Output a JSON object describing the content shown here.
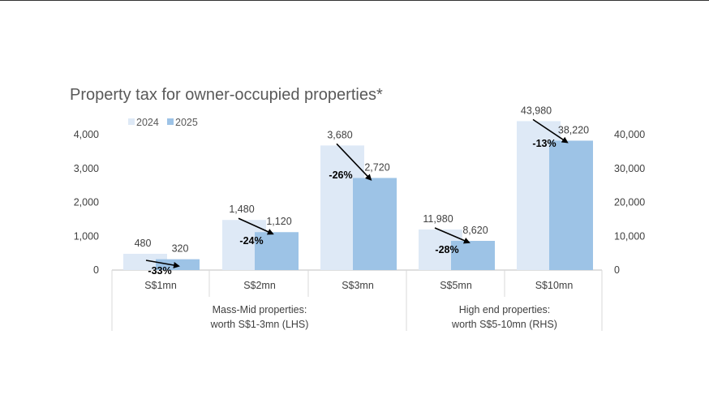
{
  "chart_data": {
    "type": "bar",
    "title": "Property tax for owner-occupied properties*",
    "categories": [
      "S$1mn",
      "S$2mn",
      "S$3mn",
      "S$5mn",
      "S$10mn"
    ],
    "groups": [
      {
        "label_lines": [
          "Mass-Mid properties:",
          "worth S$1-3mn (LHS)"
        ],
        "categories": [
          "S$1mn",
          "S$2mn",
          "S$3mn"
        ],
        "axis": "left"
      },
      {
        "label_lines": [
          "High end properties:",
          "worth S$5-10mn (RHS)"
        ],
        "categories": [
          "S$5mn",
          "S$10mn"
        ],
        "axis": "right"
      }
    ],
    "series": [
      {
        "name": "2024",
        "color": "#dee9f6",
        "values": [
          480,
          1480,
          3680,
          11980,
          43980
        ],
        "labels": [
          "480",
          "1,480",
          "3,680",
          "11,980",
          "43,980"
        ]
      },
      {
        "name": "2025",
        "color": "#9dc3e6",
        "values": [
          320,
          1120,
          2720,
          8620,
          38220
        ],
        "labels": [
          "320",
          "1,120",
          "2,720",
          "8,620",
          "38,220"
        ]
      }
    ],
    "change_labels": [
      "-33%",
      "-24%",
      "-26%",
      "-28%",
      "-13%"
    ],
    "left_axis": {
      "min": 0,
      "max": 4000,
      "ticks": [
        "0",
        "1,000",
        "2,000",
        "3,000",
        "4,000"
      ]
    },
    "right_axis": {
      "min": 0,
      "max": 40000,
      "ticks": [
        "0",
        "10,000",
        "20,000",
        "30,000",
        "40,000"
      ]
    },
    "legend_position": "top-left",
    "grid": false
  }
}
